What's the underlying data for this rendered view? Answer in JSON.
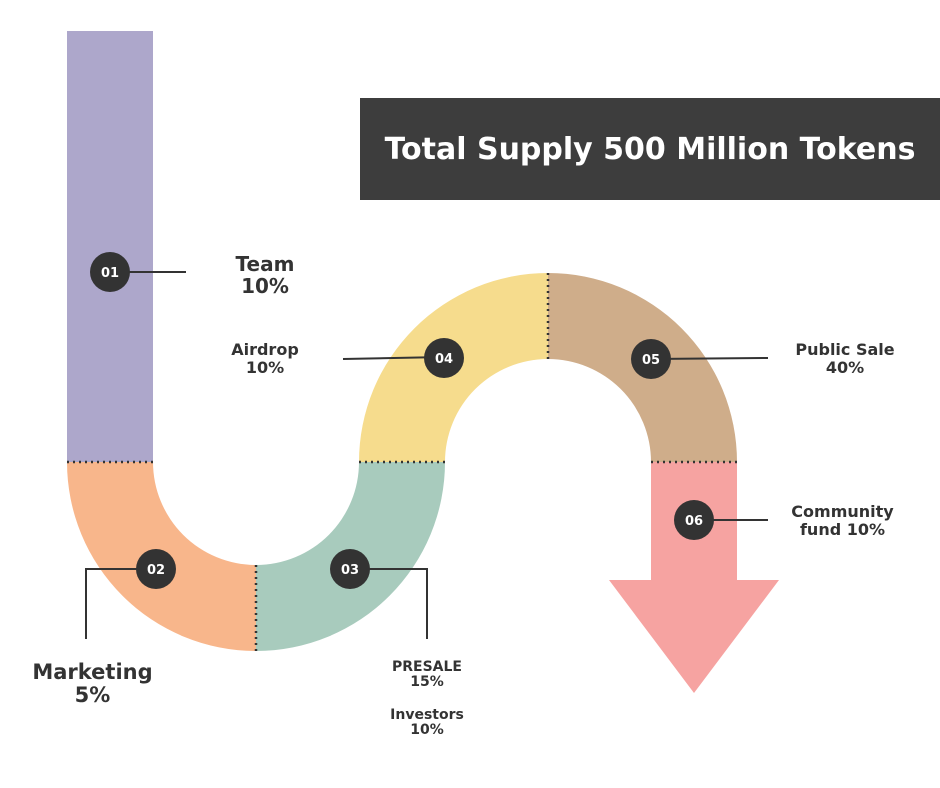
{
  "title": "Total Supply 500 Million Tokens",
  "colors": {
    "team": "#ada7cb",
    "marketing": "#f8b68b",
    "presale_investors": "#a8cbbd",
    "airdrop": "#f6dc8d",
    "public_sale": "#cfad8a",
    "community_fund": "#f6a3a1",
    "badge": "#333333",
    "title_bg": "#3d3d3d"
  },
  "segments": [
    {
      "badge": "01",
      "label": "Team",
      "value": "10%"
    },
    {
      "badge": "02",
      "label": "Marketing",
      "value": "5%"
    },
    {
      "badge": "03",
      "label": "PRESALE",
      "value": "15%",
      "label2": "Investors",
      "value2": "10%"
    },
    {
      "badge": "04",
      "label": "Airdrop",
      "value": "10%"
    },
    {
      "badge": "05",
      "label": "Public Sale",
      "value": "40%"
    },
    {
      "badge": "06",
      "label": "Community",
      "value": "fund 10%"
    }
  ]
}
